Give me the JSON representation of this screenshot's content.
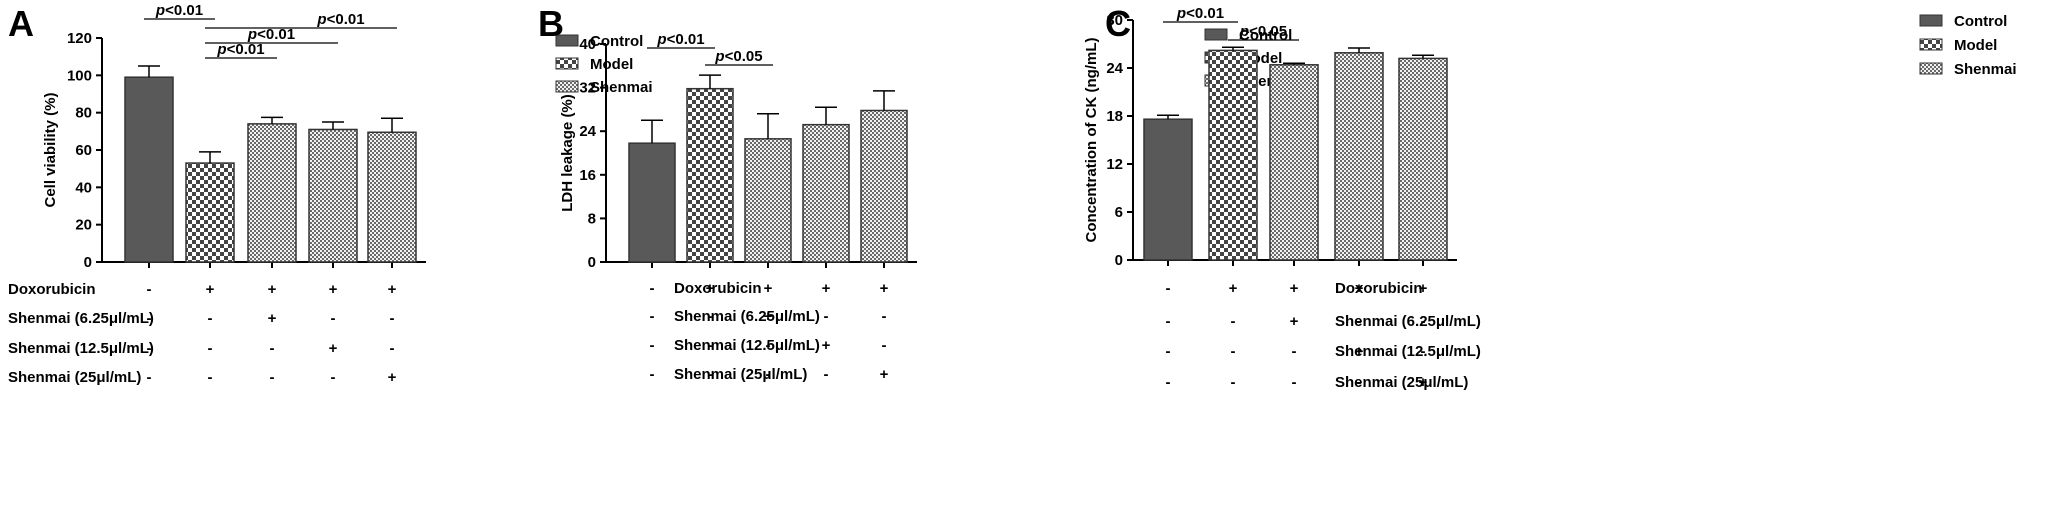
{
  "colors": {
    "control": "#595959",
    "model_fg": "#444444",
    "shenmai_fg": "#6a6a6a",
    "axis": "#000000"
  },
  "legend": [
    "Control",
    "Model",
    "Shenmai"
  ],
  "conditions": {
    "row_labels": [
      "Doxorubicin",
      "Shenmai (6.25μl/mL)",
      "Shenmai (12.5μl/mL)",
      "Shenmai (25μl/mL)"
    ],
    "matrix": [
      [
        "-",
        "+",
        "+",
        "+",
        "+"
      ],
      [
        "-",
        "-",
        "+",
        "-",
        "-"
      ],
      [
        "-",
        "-",
        "-",
        "+",
        "-"
      ],
      [
        "-",
        "-",
        "-",
        "-",
        "+"
      ]
    ]
  },
  "chart_data": [
    {
      "panel": "A",
      "type": "bar",
      "categories": [
        "Control",
        "Model",
        "Shenmai 6.25",
        "Shenmai 12.5",
        "Shenmai 25"
      ],
      "pattern_group": [
        "Control",
        "Model",
        "Shenmai",
        "Shenmai",
        "Shenmai"
      ],
      "values": [
        99,
        53,
        74,
        71,
        69.5
      ],
      "errors": [
        6,
        6,
        3.5,
        4,
        7.5
      ],
      "ylabel": "Cell viability (%)",
      "ylim": [
        0,
        120
      ],
      "yticks": [
        0,
        20,
        40,
        60,
        80,
        100,
        120
      ],
      "legend_position": "top-right",
      "significance": [
        {
          "from": 0,
          "to": 1,
          "label": "p<0.01"
        },
        {
          "from": 1,
          "to": 4,
          "label": "p<0.01"
        },
        {
          "from": 1,
          "to": 3,
          "label": "p<0.01"
        },
        {
          "from": 1,
          "to": 2,
          "label": "p<0.01"
        }
      ]
    },
    {
      "panel": "B",
      "type": "bar",
      "categories": [
        "Control",
        "Model",
        "Shenmai 6.25",
        "Shenmai 12.5",
        "Shenmai 25"
      ],
      "pattern_group": [
        "Control",
        "Model",
        "Shenmai",
        "Shenmai",
        "Shenmai"
      ],
      "values": [
        21.8,
        31.8,
        22.6,
        25.2,
        27.8
      ],
      "errors": [
        4.2,
        2.5,
        4.6,
        3.2,
        3.6
      ],
      "ylabel": "LDH leakage (%)",
      "ylim": [
        0,
        40
      ],
      "yticks": [
        0,
        8,
        16,
        24,
        32,
        40
      ],
      "legend_position": "top-right",
      "significance": [
        {
          "from": 0,
          "to": 1,
          "label": "p<0.01"
        },
        {
          "from": 1,
          "to": 2,
          "label": "p<0.05"
        }
      ]
    },
    {
      "panel": "C",
      "type": "bar",
      "categories": [
        "Control",
        "Model",
        "Shenmai 6.25",
        "Shenmai 12.5",
        "Shenmai 25"
      ],
      "pattern_group": [
        "Control",
        "Model",
        "Shenmai",
        "Shenmai",
        "Shenmai"
      ],
      "values": [
        17.6,
        26.2,
        24.4,
        25.9,
        25.2
      ],
      "errors": [
        0.5,
        0.4,
        0.2,
        0.6,
        0.4
      ],
      "ylabel": "Concentration of CK (ng/mL)",
      "ylim": [
        0,
        30
      ],
      "yticks": [
        0,
        6,
        12,
        18,
        24,
        30
      ],
      "legend_position": "top-right",
      "significance": [
        {
          "from": 0,
          "to": 1,
          "label": "p<0.01"
        },
        {
          "from": 1,
          "to": 2,
          "label": "p<0.05"
        }
      ]
    }
  ]
}
